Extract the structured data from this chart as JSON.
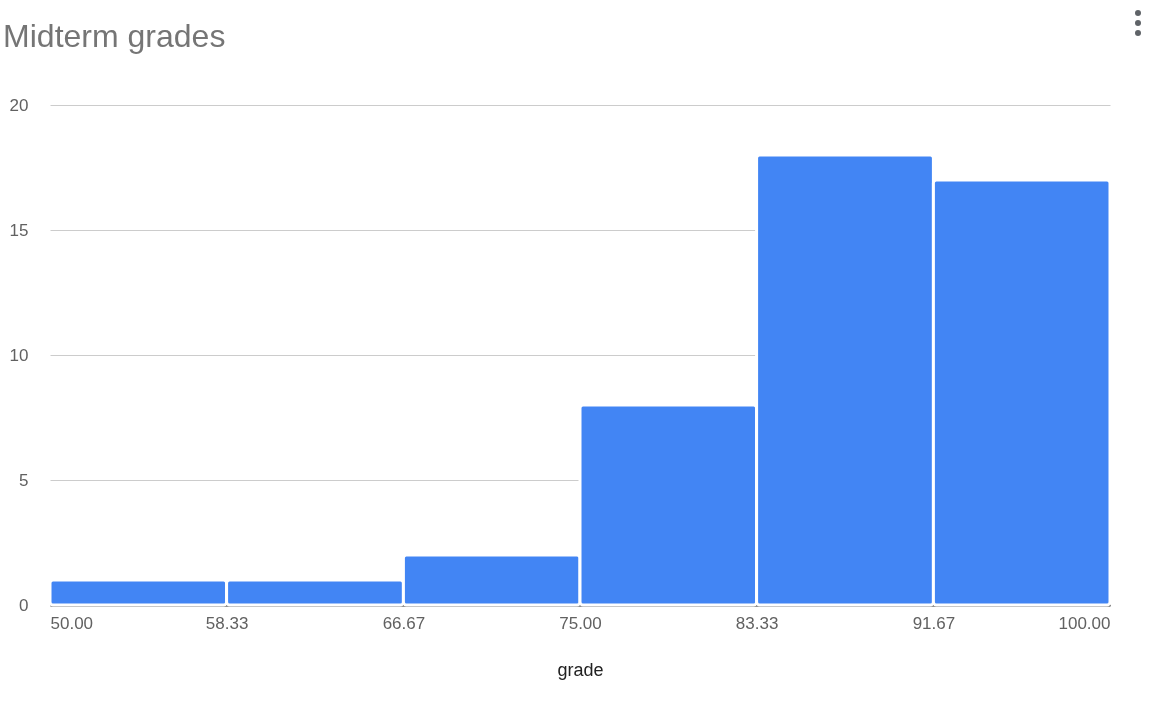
{
  "chart_data": {
    "type": "histogram",
    "title": "Midterm grades",
    "xlabel": "grade",
    "bins": [
      50,
      58.33,
      66.67,
      75,
      83.33,
      91.67,
      100
    ],
    "values": [
      1,
      1,
      2,
      8,
      18,
      17
    ],
    "color": "#4285f4",
    "xlim": [
      50,
      100
    ],
    "xticks": [
      {
        "value": 50,
        "label": "50.00"
      },
      58.33,
      66.67,
      {
        "value": 75,
        "label": "75.00"
      },
      83.33,
      91.67,
      {
        "value": 100,
        "label": "100.00"
      }
    ],
    "ylim": [
      0,
      20
    ],
    "yticks": [
      0,
      5,
      10,
      15,
      20
    ],
    "grid": "y"
  }
}
